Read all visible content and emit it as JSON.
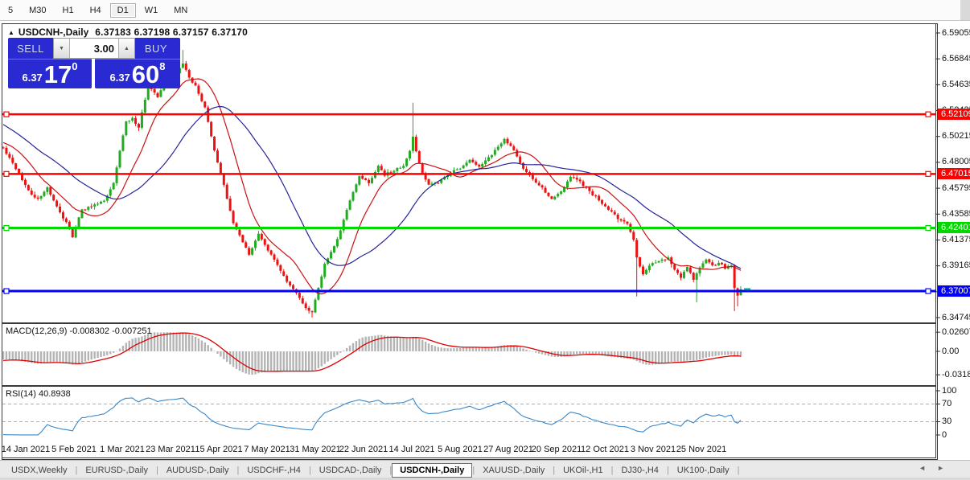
{
  "toolbar": {
    "timeframes": [
      "5",
      "M30",
      "H1",
      "H4",
      "D1",
      "W1",
      "MN"
    ],
    "active": "D1"
  },
  "window": {
    "collapse_arrow": "▲",
    "symbol_title": "USDCNH-,Daily",
    "quotes": "6.37183 6.37198 6.37157 6.37170"
  },
  "trade_panel": {
    "sell_label": "SELL",
    "buy_label": "BUY",
    "volume": "3.00",
    "spinner_down": "▼",
    "spinner_up": "▲",
    "sell_price_small": "6.37",
    "sell_price_big": "17",
    "sell_price_sup": "0",
    "buy_price_small": "6.37",
    "buy_price_big": "60",
    "buy_price_sup": "8"
  },
  "indicators": {
    "macd_label": "MACD(12,26,9) -0.008302 -0.007251",
    "rsi_label": "RSI(14) 40.8938"
  },
  "tabs": {
    "items": [
      "USDX,Weekly",
      "EURUSD-,Daily",
      "AUDUSD-,Daily",
      "USDCHF-,H4",
      "USDCAD-,Daily",
      "USDCNH-,Daily",
      "XAUUSD-,Daily",
      "UKOil-,H1",
      "DJ30-,H4",
      "UK100-,Daily"
    ],
    "active_index": 5,
    "scroll_left": "◄",
    "scroll_right": "►"
  },
  "chart_data": {
    "type": "candlestick",
    "symbol": "USDCNH-",
    "timeframe": "Daily",
    "quote_open": "6.37183",
    "quote_high": "6.37198",
    "quote_low": "6.37157",
    "quote_close": "6.37170",
    "last_close": 6.3717,
    "bars": 235,
    "close_path_anchors": [
      [
        0,
        6.492
      ],
      [
        3,
        6.48
      ],
      [
        6,
        6.465
      ],
      [
        9,
        6.452
      ],
      [
        11,
        6.448
      ],
      [
        14,
        6.458
      ],
      [
        17,
        6.442
      ],
      [
        20,
        6.428
      ],
      [
        22,
        6.417
      ],
      [
        25,
        6.44
      ],
      [
        28,
        6.443
      ],
      [
        32,
        6.447
      ],
      [
        35,
        6.462
      ],
      [
        37,
        6.49
      ],
      [
        39,
        6.515
      ],
      [
        41,
        6.518
      ],
      [
        43,
        6.51
      ],
      [
        46,
        6.545
      ],
      [
        49,
        6.537
      ],
      [
        52,
        6.55
      ],
      [
        55,
        6.556
      ],
      [
        57,
        6.565
      ],
      [
        59,
        6.553
      ],
      [
        61,
        6.545
      ],
      [
        64,
        6.527
      ],
      [
        67,
        6.49
      ],
      [
        70,
        6.46
      ],
      [
        73,
        6.428
      ],
      [
        76,
        6.412
      ],
      [
        78,
        6.401
      ],
      [
        81,
        6.418
      ],
      [
        84,
        6.406
      ],
      [
        87,
        6.393
      ],
      [
        90,
        6.378
      ],
      [
        93,
        6.368
      ],
      [
        96,
        6.356
      ],
      [
        98,
        6.352
      ],
      [
        100,
        6.372
      ],
      [
        102,
        6.394
      ],
      [
        105,
        6.408
      ],
      [
        107,
        6.422
      ],
      [
        110,
        6.448
      ],
      [
        113,
        6.468
      ],
      [
        116,
        6.462
      ],
      [
        119,
        6.477
      ],
      [
        121,
        6.469
      ],
      [
        124,
        6.473
      ],
      [
        127,
        6.477
      ],
      [
        129,
        6.49
      ],
      [
        130,
        6.503
      ],
      [
        131,
        6.49
      ],
      [
        133,
        6.47
      ],
      [
        135,
        6.461
      ],
      [
        138,
        6.463
      ],
      [
        141,
        6.469
      ],
      [
        144,
        6.474
      ],
      [
        148,
        6.482
      ],
      [
        151,
        6.477
      ],
      [
        154,
        6.484
      ],
      [
        157,
        6.493
      ],
      [
        159,
        6.499
      ],
      [
        162,
        6.49
      ],
      [
        165,
        6.474
      ],
      [
        168,
        6.466
      ],
      [
        171,
        6.458
      ],
      [
        174,
        6.449
      ],
      [
        177,
        6.455
      ],
      [
        180,
        6.468
      ],
      [
        183,
        6.463
      ],
      [
        186,
        6.455
      ],
      [
        189,
        6.447
      ],
      [
        192,
        6.44
      ],
      [
        195,
        6.432
      ],
      [
        198,
        6.428
      ],
      [
        200,
        6.415
      ],
      [
        201,
        6.398
      ],
      [
        203,
        6.385
      ],
      [
        205,
        6.392
      ],
      [
        208,
        6.396
      ],
      [
        211,
        6.398
      ],
      [
        213,
        6.388
      ],
      [
        215,
        6.382
      ],
      [
        217,
        6.39
      ],
      [
        219,
        6.381
      ],
      [
        221,
        6.39
      ],
      [
        223,
        6.397
      ],
      [
        225,
        6.392
      ],
      [
        227,
        6.394
      ],
      [
        229,
        6.39
      ],
      [
        231,
        6.392
      ],
      [
        232,
        6.372
      ],
      [
        233,
        6.366
      ],
      [
        234,
        6.3717
      ]
    ],
    "spikes": [
      {
        "bar": 57,
        "high": 6.576
      },
      {
        "bar": 98,
        "low": 6.3475
      },
      {
        "bar": 130,
        "high": 6.531
      },
      {
        "bar": 201,
        "low": 6.3655
      },
      {
        "bar": 220,
        "low": 6.3605
      },
      {
        "bar": 232,
        "low": 6.353
      },
      {
        "bar": 233,
        "low": 6.357
      }
    ],
    "levels": [
      {
        "price": 6.52109,
        "label": "6.52109",
        "color": "#ff0000",
        "width": 2.5
      },
      {
        "price": 6.47015,
        "label": "6.47015",
        "color": "#ff0000",
        "width": 2.5
      },
      {
        "price": 6.42401,
        "label": "6.42401",
        "color": "#00d800",
        "width": 3
      },
      {
        "price": 6.37007,
        "label": "6.37007",
        "color": "#0000ff",
        "width": 3
      }
    ],
    "y_axis": {
      "top_price": 6.59055,
      "bottom_price": 6.34745,
      "ticks": [
        {
          "label": "6.59055",
          "price": 6.59055
        },
        {
          "label": "6.56845",
          "price": 6.56845
        },
        {
          "label": "6.54635",
          "price": 6.54635
        },
        {
          "label": "6.52425",
          "price": 6.52425
        },
        {
          "label": "6.50215",
          "price": 6.50215
        },
        {
          "label": "6.48005",
          "price": 6.48005
        },
        {
          "label": "6.45795",
          "price": 6.45795
        },
        {
          "label": "6.43585",
          "price": 6.43585
        },
        {
          "label": "6.41375",
          "price": 6.41375
        },
        {
          "label": "6.39165",
          "price": 6.39165
        },
        {
          "label": "6.36955",
          "price": 6.36955
        },
        {
          "label": "6.34745",
          "price": 6.34745
        }
      ]
    },
    "x_labels": [
      "14 Jan 2021",
      "5 Feb 2021",
      "1 Mar 2021",
      "23 Mar 2021",
      "15 Apr 2021",
      "7 May 2021",
      "31 May 2021",
      "22 Jun 2021",
      "14 Jul 2021",
      "5 Aug 2021",
      "27 Aug 2021",
      "20 Sep 2021",
      "12 Oct 2021",
      "3 Nov 2021",
      "25 Nov 2021"
    ],
    "moving_averages": [
      {
        "period": 13,
        "color": "#cc1111"
      },
      {
        "period": 34,
        "color": "#242499"
      }
    ],
    "macd": {
      "params": "12,26,9",
      "value": "-0.008302",
      "signal": "-0.007251",
      "hist_color": "#b4b4b4",
      "signal_color": "#dd0000",
      "ticks": [
        {
          "label": "0.02607",
          "value": 0.02607
        },
        {
          "label": "0.00",
          "value": 0
        },
        {
          "label": "-0.03187",
          "value": -0.03187
        }
      ]
    },
    "rsi": {
      "period": 14,
      "value": "40.8938",
      "line_color": "#3a87c8",
      "guide_levels": [
        70,
        30
      ],
      "ticks": [
        {
          "label": "100",
          "value": 100
        },
        {
          "label": "70",
          "value": 70
        },
        {
          "label": "30",
          "value": 30
        },
        {
          "label": "0",
          "value": 0
        }
      ]
    },
    "colors": {
      "up": "#22aa22",
      "down": "#ee1111",
      "marker": "#00a0a0"
    }
  }
}
